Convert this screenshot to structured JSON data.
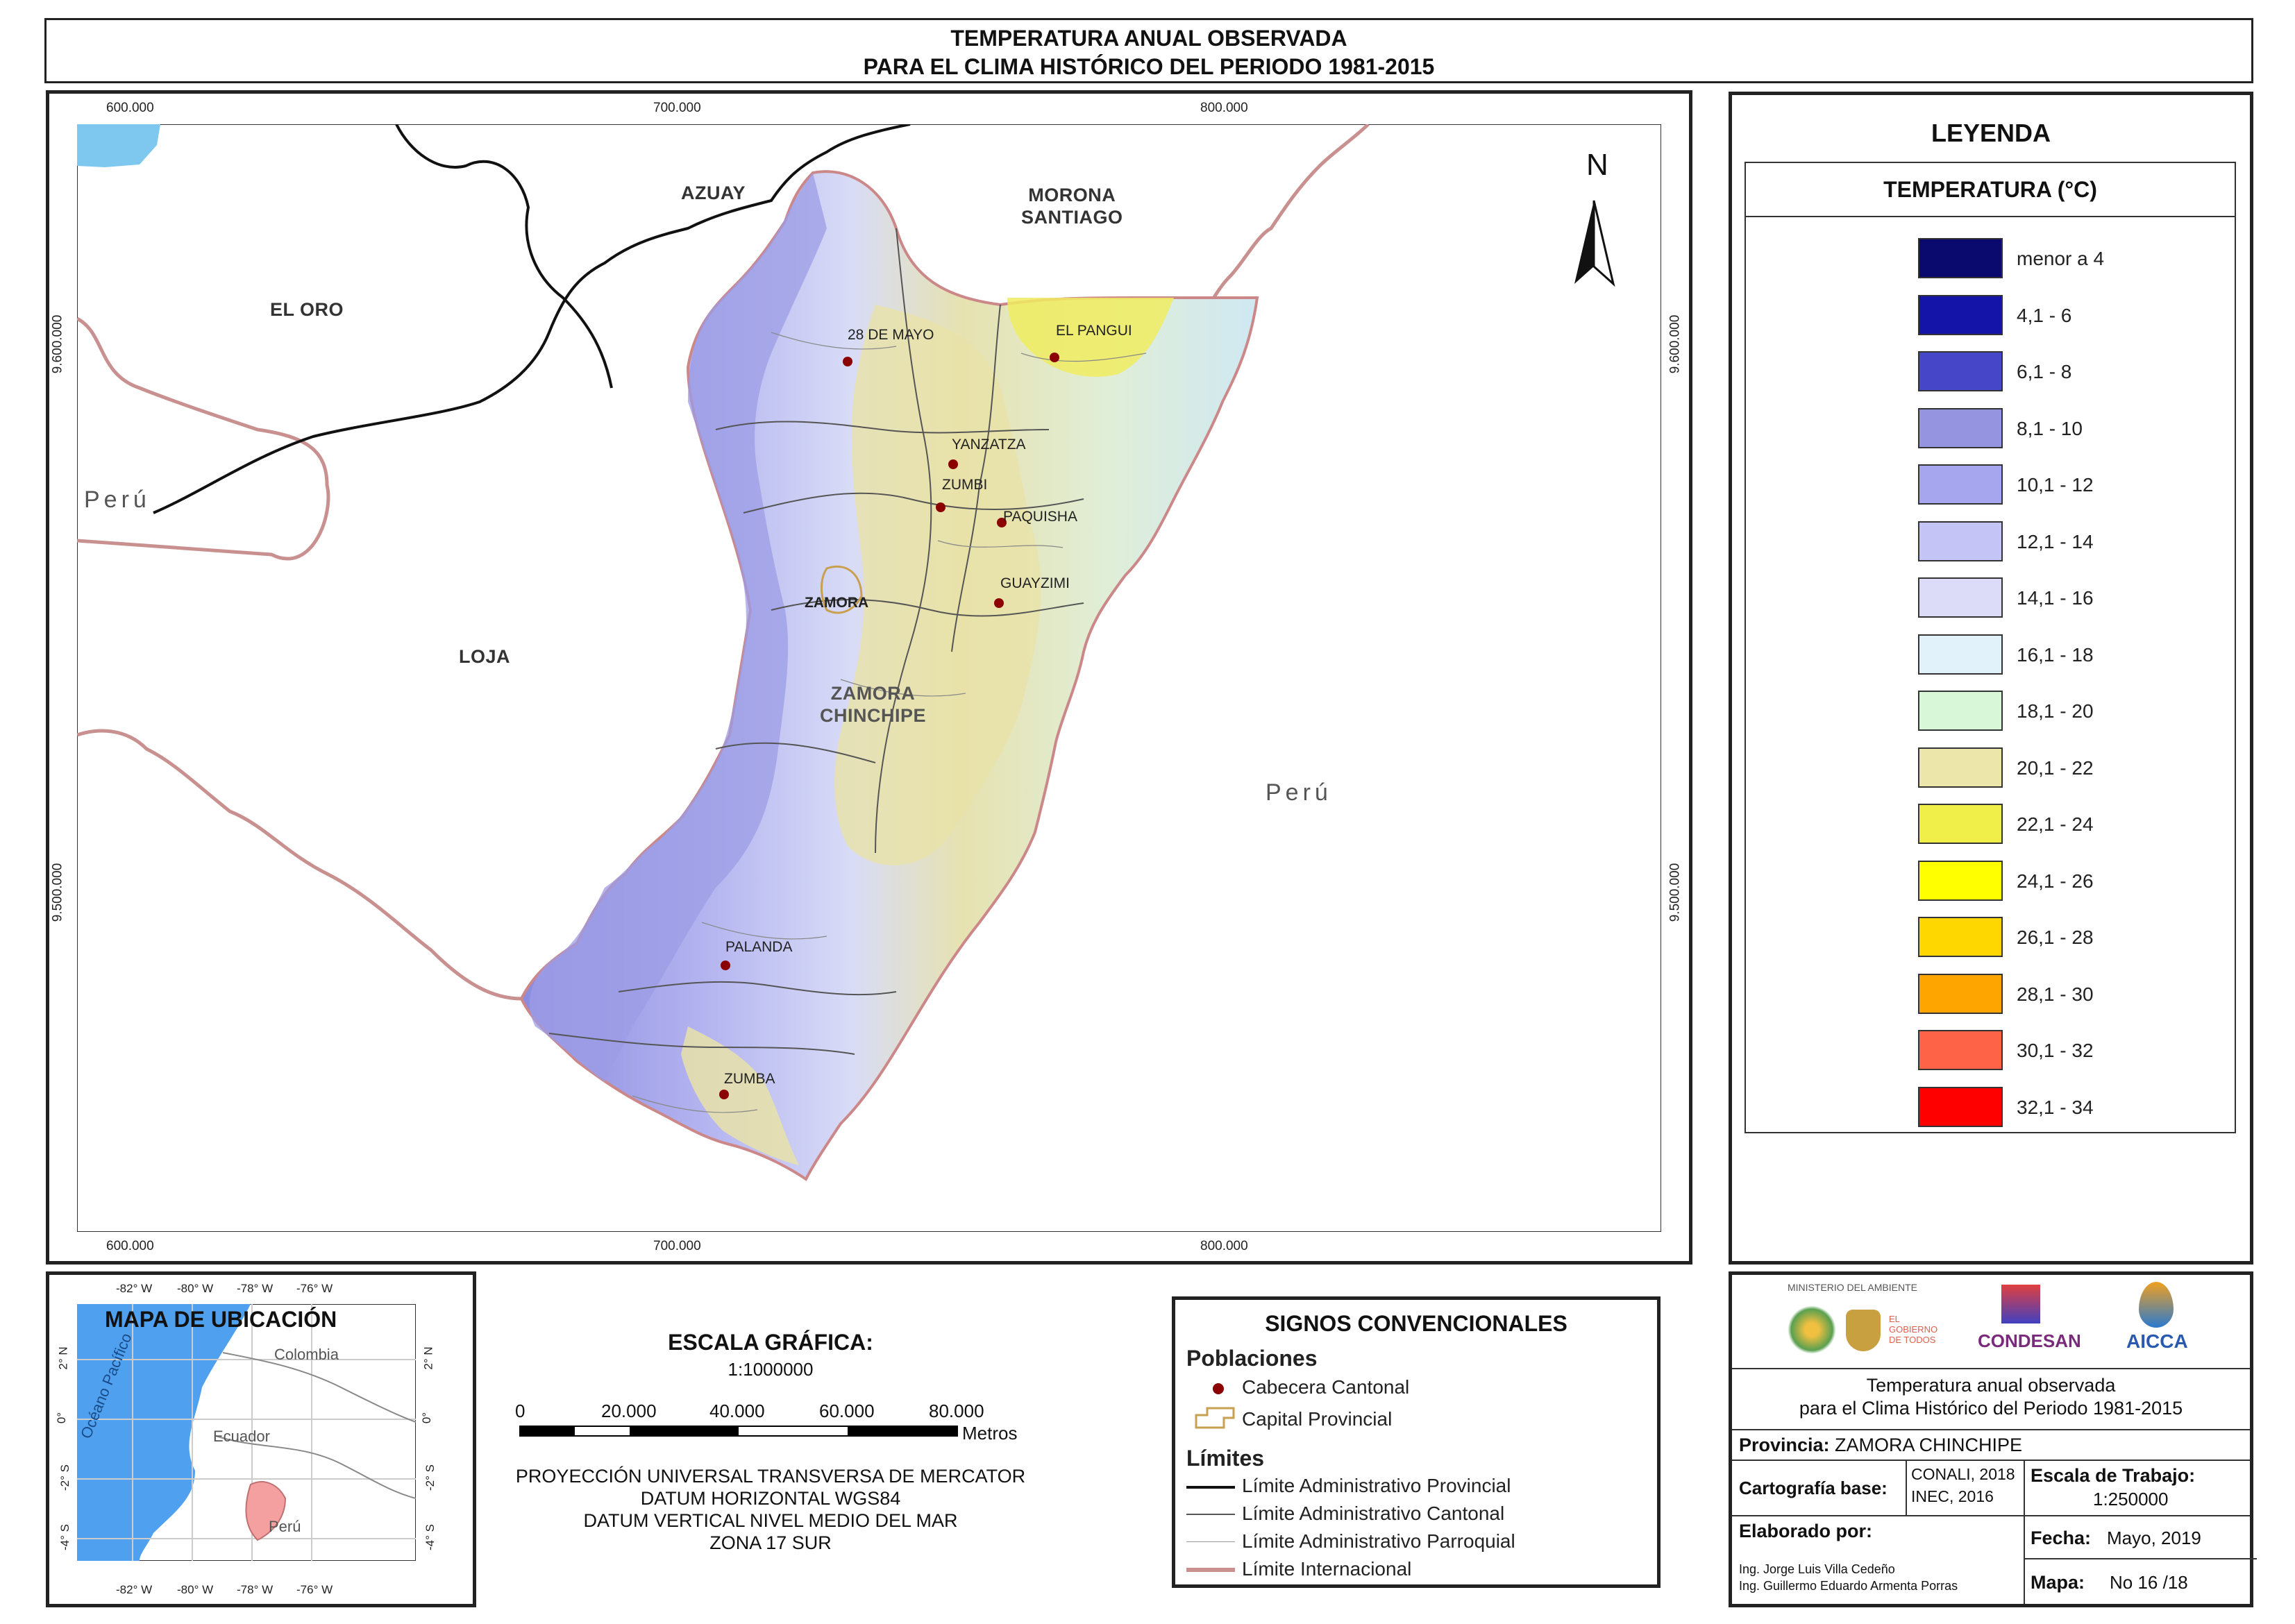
{
  "title": {
    "line1": "TEMPERATURA ANUAL OBSERVADA",
    "line2": "PARA EL CLIMA HISTÓRICO DEL PERIODO 1981-2015"
  },
  "map": {
    "x_ticks": [
      "600.000",
      "700.000",
      "800.000"
    ],
    "y_ticks": [
      "9.600.000",
      "9.500.000"
    ],
    "north_label": "N",
    "regions": {
      "azuay": "AZUAY",
      "morona": "MORONA\nSANTIAGO",
      "el_oro": "EL ORO",
      "loja": "LOJA",
      "zamora": "ZAMORA\nCHINCHIPE",
      "peru_west": "Perú",
      "peru_east": "Perú"
    },
    "towns": [
      {
        "name": "28 DE MAYO"
      },
      {
        "name": "EL PANGUI"
      },
      {
        "name": "YANZATZA"
      },
      {
        "name": "ZUMBI"
      },
      {
        "name": "PAQUISHA"
      },
      {
        "name": "GUAYZIMI"
      },
      {
        "name": "ZAMORA"
      },
      {
        "name": "PALANDA"
      },
      {
        "name": "ZUMBA"
      }
    ]
  },
  "legend": {
    "title": "LEYENDA",
    "subtitle": "TEMPERATURA (°C)",
    "items": [
      {
        "label": "menor a 4",
        "color": "#0a0a6e"
      },
      {
        "label": "4,1 - 6",
        "color": "#1414a8"
      },
      {
        "label": "6,1 - 8",
        "color": "#4646c8"
      },
      {
        "label": "8,1 - 10",
        "color": "#9494e0"
      },
      {
        "label": "10,1 - 12",
        "color": "#a6a6ee"
      },
      {
        "label": "12,1 - 14",
        "color": "#c4c4f6"
      },
      {
        "label": "14,1 - 16",
        "color": "#dcdcf8"
      },
      {
        "label": "16,1 - 18",
        "color": "#e2f2fa"
      },
      {
        "label": "18,1 - 20",
        "color": "#d8f6d8"
      },
      {
        "label": "20,1 - 22",
        "color": "#ece6aa"
      },
      {
        "label": "22,1 - 24",
        "color": "#f0ee48"
      },
      {
        "label": "24,1 - 26",
        "color": "#ffff00"
      },
      {
        "label": "26,1 - 28",
        "color": "#ffd700"
      },
      {
        "label": "28,1 - 30",
        "color": "#ffa500"
      },
      {
        "label": "30,1 - 32",
        "color": "#ff6347"
      },
      {
        "label": "32,1 - 34",
        "color": "#ff0000"
      }
    ]
  },
  "location_map": {
    "title": "MAPA DE UBICACIÓN",
    "top_ticks": [
      "-82° W",
      "-80° W",
      "-78° W",
      "-76° W"
    ],
    "bottom_ticks": [
      "-82° W",
      "-80° W",
      "-78° W",
      "-76° W"
    ],
    "side_ticks": [
      "2° N",
      "0°",
      "-2° S",
      "-4° S"
    ],
    "countries": {
      "colombia": "Colombia",
      "ecuador": "Ecuador",
      "peru": "Perú"
    },
    "ocean": "Océano Pacífico"
  },
  "scale": {
    "title": "ESCALA GRÁFICA:",
    "ratio": "1:1000000",
    "ticks": [
      "0",
      "20.000",
      "40.000",
      "60.000",
      "80.000"
    ],
    "unit": "Metros",
    "projection": [
      "PROYECCIÓN UNIVERSAL TRANSVERSA DE MERCATOR",
      "DATUM HORIZONTAL WGS84",
      "DATUM VERTICAL NIVEL MEDIO DEL MAR",
      "ZONA 17 SUR"
    ]
  },
  "signs": {
    "title": "SIGNOS CONVENCIONALES",
    "populations_heading": "Poblaciones",
    "cabecera": "Cabecera Cantonal",
    "capital": "Capital Provincial",
    "limits_heading": "Límites",
    "limit_prov": "Límite Administrativo Provincial",
    "limit_cant": "Límite Administrativo Cantonal",
    "limit_parr": "Límite Administrativo Parroquial",
    "limit_int": "Límite Internacional"
  },
  "info": {
    "logos": {
      "ministerio": "MINISTERIO DEL AMBIENTE",
      "gobierno": "EL GOBIERNO DE TODOS",
      "condesan": "CONDESAN",
      "aicca": "AICCA"
    },
    "map_title_line1": "Temperatura anual observada",
    "map_title_line2": "para el Clima Histórico del Periodo 1981-2015",
    "provincia_label": "Provincia:",
    "provincia_value": "ZAMORA CHINCHIPE",
    "cartografia_label": "Cartografía base:",
    "cartografia_value1": "CONALI, 2018",
    "cartografia_value2": "INEC, 2016",
    "escala_label": "Escala de Trabajo:",
    "escala_value": "1:250000",
    "elaborado_label": "Elaborado por:",
    "elaborado_1": "Ing. Jorge Luis Villa Cedeño",
    "elaborado_2": "Ing. Guillermo Eduardo Armenta Porras",
    "fecha_label": "Fecha:",
    "fecha_value": "Mayo, 2019",
    "mapa_label": "Mapa:",
    "mapa_value": "No 16 /18"
  }
}
